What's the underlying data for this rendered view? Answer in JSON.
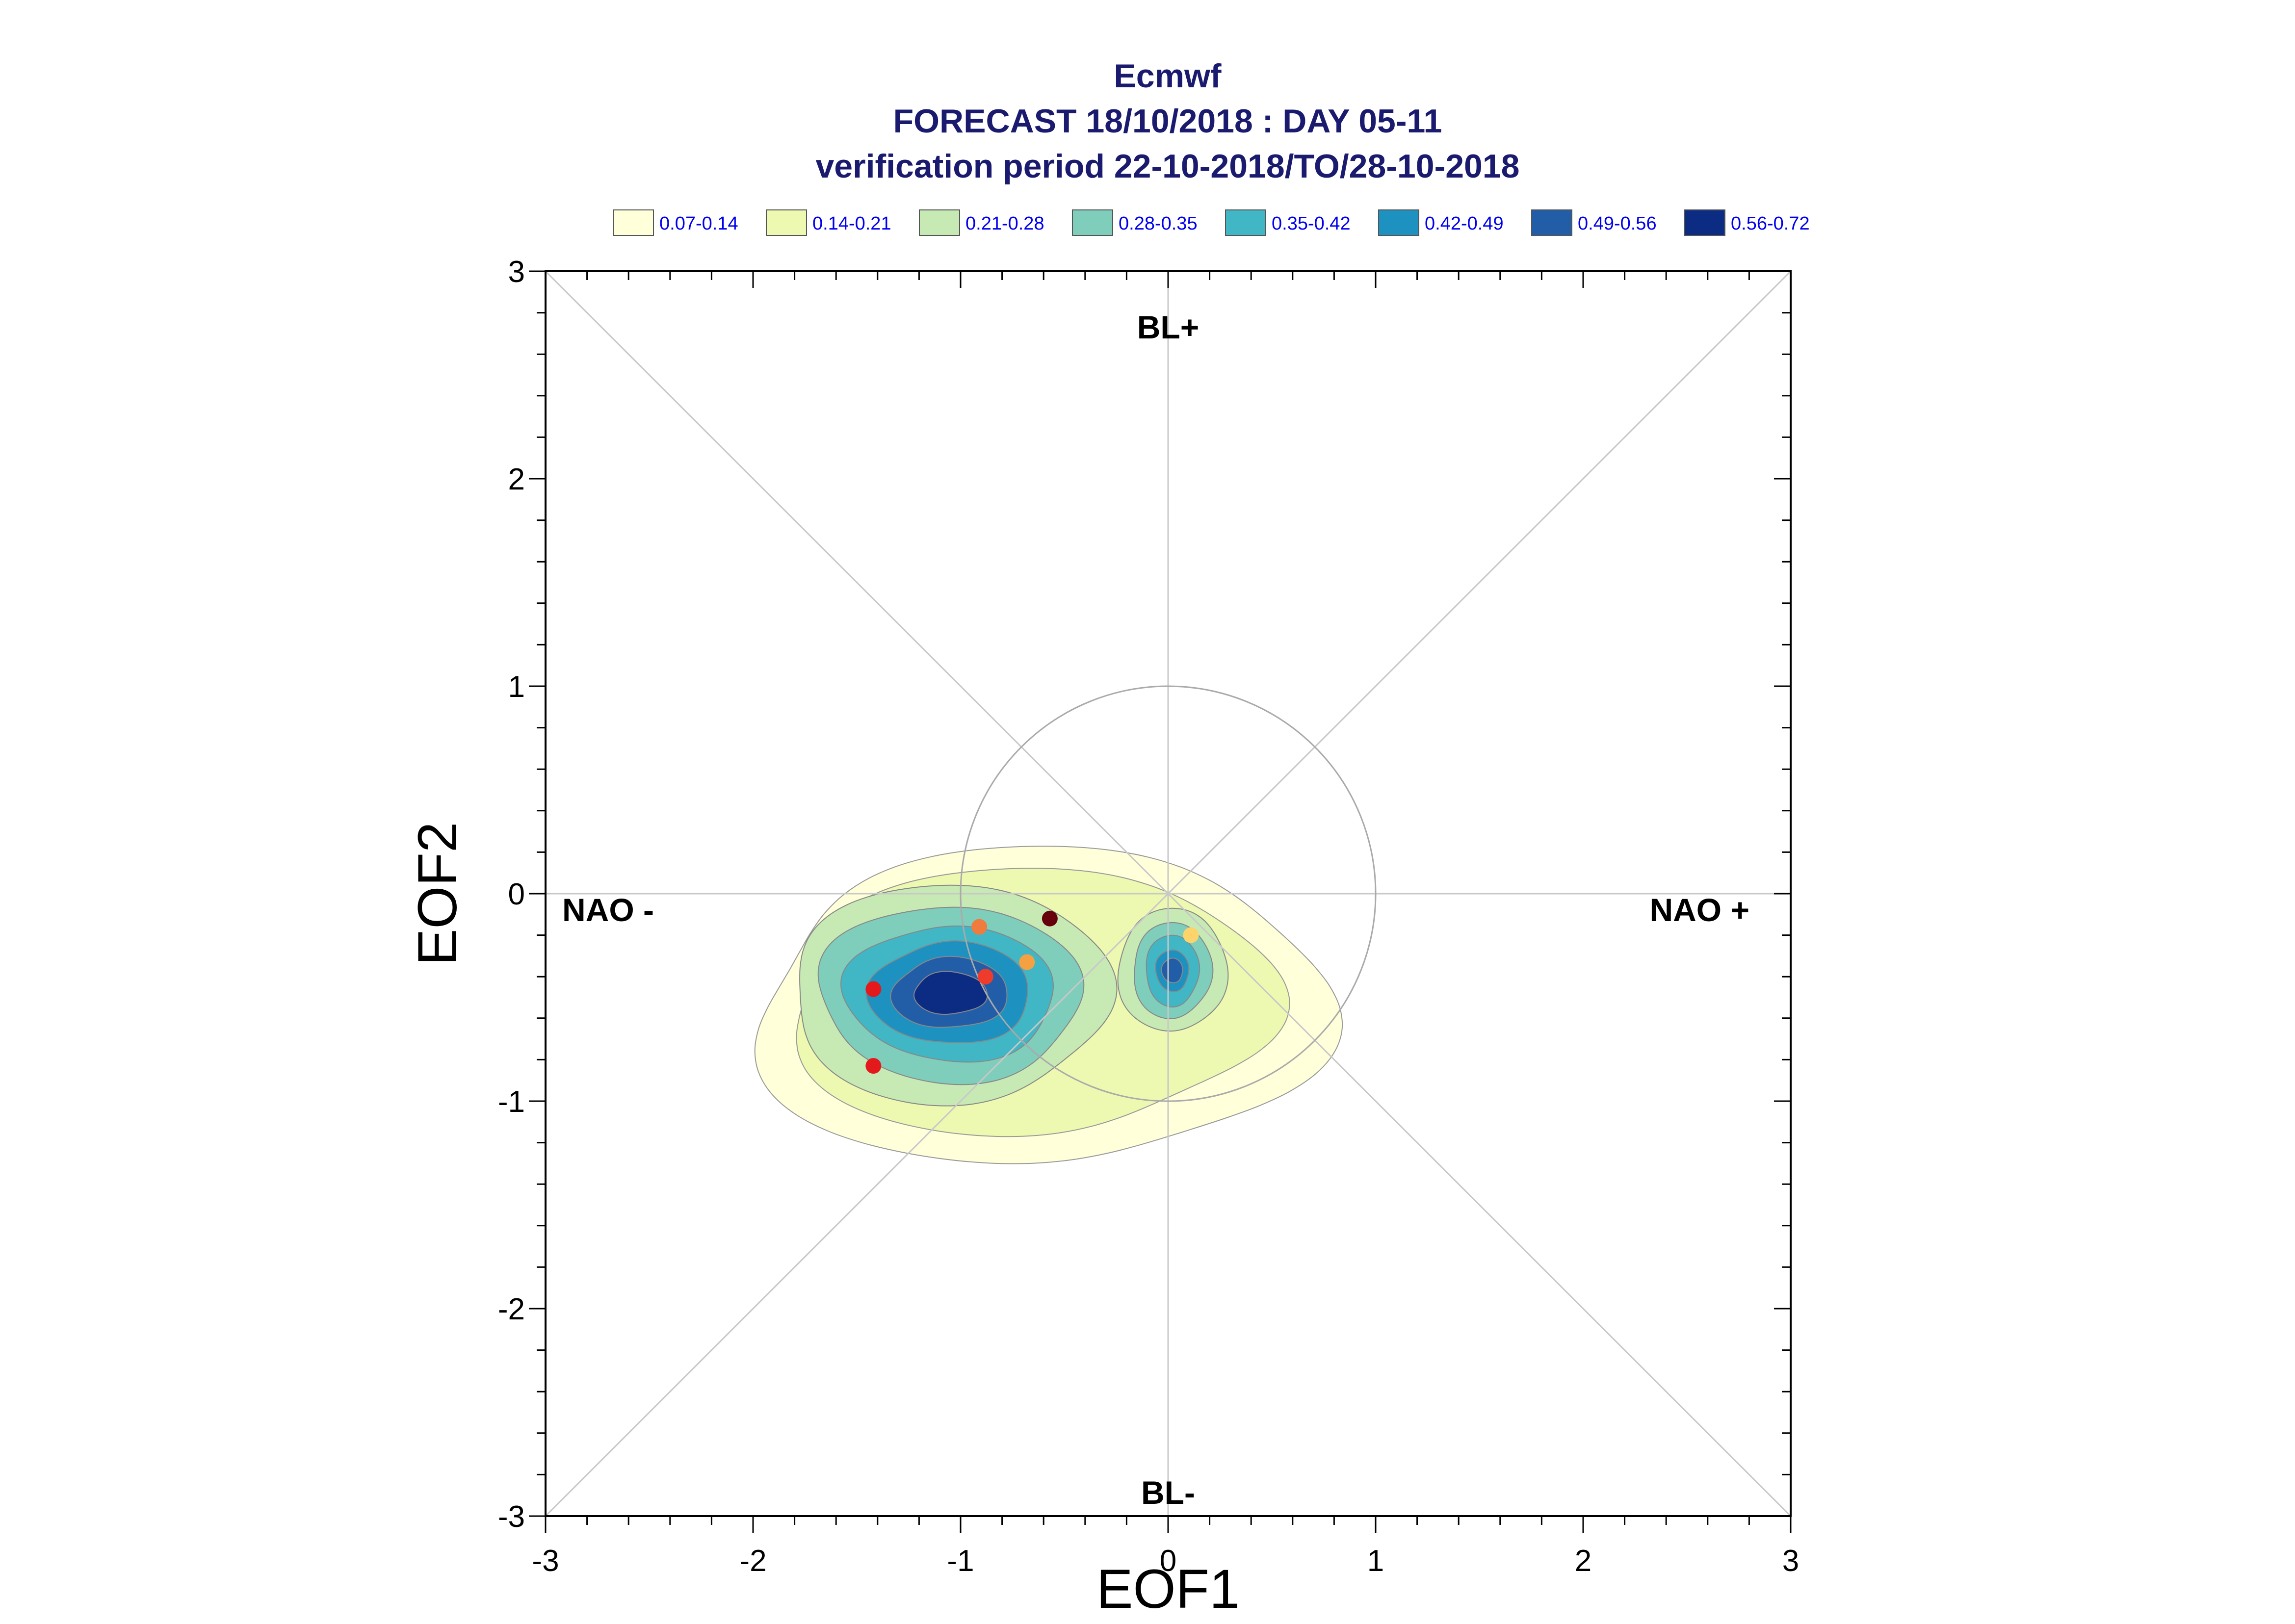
{
  "chart_data": {
    "type": "scatter",
    "title": "Ecmwf",
    "subtitle_lines": [
      "FORECAST 18/10/2018 : DAY 05-11",
      "verification period 22-10-2018/TO/28-10-2018"
    ],
    "xlabel": "EOF1",
    "ylabel": "EOF2",
    "xlim": [
      -3,
      3
    ],
    "ylim": [
      -3,
      3
    ],
    "x_ticks": [
      "-3",
      "-2",
      "-1",
      "0",
      "1",
      "2",
      "3"
    ],
    "y_ticks": [
      "-3",
      "-2",
      "-1",
      "0",
      "1",
      "2",
      "3"
    ],
    "grid": false,
    "legend_position": "top",
    "legend": [
      {
        "label": "0.07-0.14",
        "color": "#ffffd9"
      },
      {
        "label": "0.14-0.21",
        "color": "#edf8b1"
      },
      {
        "label": "0.21-0.28",
        "color": "#c7e9b4"
      },
      {
        "label": "0.28-0.35",
        "color": "#7fcdbb"
      },
      {
        "label": "0.35-0.42",
        "color": "#41b6c4"
      },
      {
        "label": "0.42-0.49",
        "color": "#1d91c0"
      },
      {
        "label": "0.49-0.56",
        "color": "#225ea8"
      },
      {
        "label": "0.56-0.72",
        "color": "#0c2c84"
      }
    ],
    "regime_labels": {
      "top": "BL+",
      "bottom": "BL-",
      "left": "NAO -",
      "right": "NAO +"
    },
    "reference_circle_radius": 1,
    "density_centers": [
      {
        "x": -1.05,
        "y": -0.48,
        "levels": 8
      },
      {
        "x": 0.02,
        "y": -0.37,
        "levels": 7
      }
    ],
    "points": [
      {
        "x": -0.57,
        "y": -0.12,
        "color": "#67000d"
      },
      {
        "x": -0.91,
        "y": -0.16,
        "color": "#f07b3f"
      },
      {
        "x": -0.88,
        "y": -0.4,
        "color": "#ef3b2c"
      },
      {
        "x": -0.68,
        "y": -0.33,
        "color": "#f5a142"
      },
      {
        "x": -1.42,
        "y": -0.46,
        "color": "#e3191c"
      },
      {
        "x": -1.42,
        "y": -0.83,
        "color": "#e3191c"
      },
      {
        "x": 0.11,
        "y": -0.2,
        "color": "#fdd46c"
      }
    ]
  }
}
